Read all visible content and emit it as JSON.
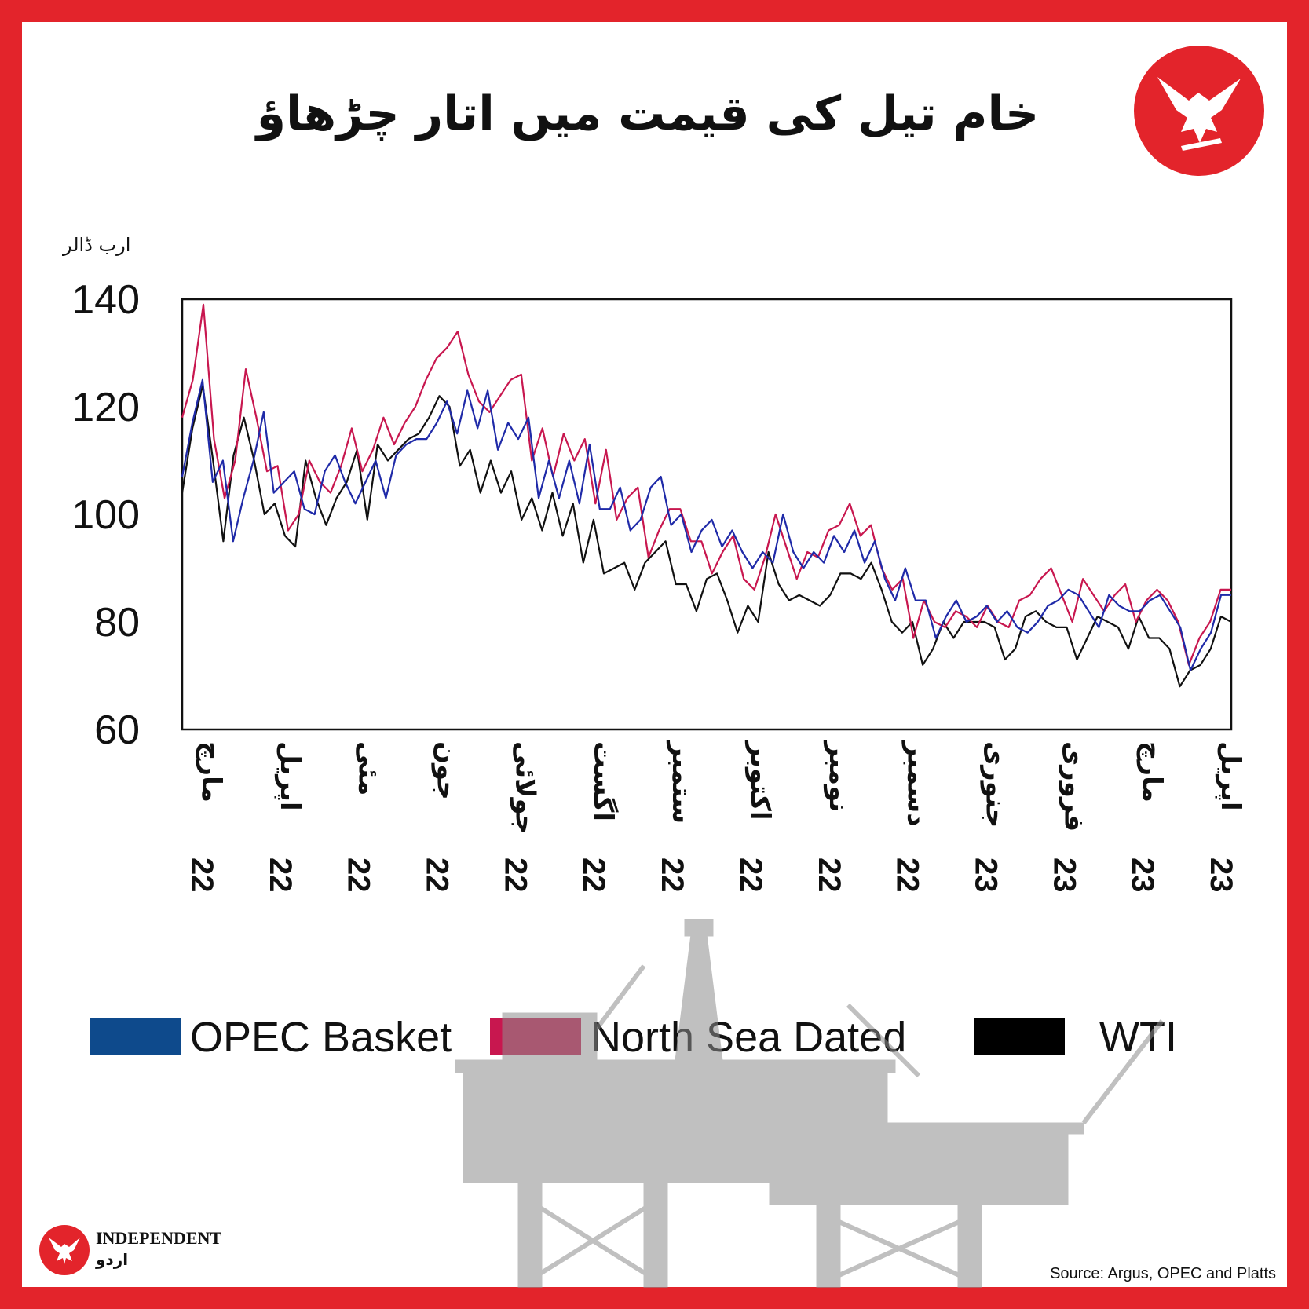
{
  "header": {
    "title": "خام تیل کی قیمت میں اتار چڑھاؤ"
  },
  "footer": {
    "brand_name": "INDEPENDENT",
    "brand_sub": "اردو",
    "source": "Source: Argus, OPEC and Platts"
  },
  "colors": {
    "frame": "#e3242b",
    "opec": "#1f2aa8",
    "north_sea": "#c8174f",
    "wti": "#111111",
    "rig": "#bdbdbd"
  },
  "icons": {
    "logo": "eagle-logo-icon",
    "rig": "oil-rig-icon"
  },
  "chart_data": {
    "type": "line",
    "title": "خام تیل کی قیمت میں اتار چڑھاؤ",
    "ylabel": "ارب ڈالر",
    "xlabel": "",
    "ylim": [
      60,
      140
    ],
    "yticks": [
      "140",
      "120",
      "100",
      "80",
      "60"
    ],
    "grid": false,
    "legend_position": "bottom",
    "x_ticks": [
      {
        "month": "مارچ",
        "year": "22"
      },
      {
        "month": "اپریل",
        "year": "22"
      },
      {
        "month": "مئی",
        "year": "22"
      },
      {
        "month": "جون",
        "year": "22"
      },
      {
        "month": "جولائی",
        "year": "22"
      },
      {
        "month": "اگست",
        "year": "22"
      },
      {
        "month": "ستمبر",
        "year": "22"
      },
      {
        "month": "اکتوبر",
        "year": "22"
      },
      {
        "month": "نومبر",
        "year": "22"
      },
      {
        "month": "دسمبر",
        "year": "22"
      },
      {
        "month": "جنوری",
        "year": "23"
      },
      {
        "month": "فروری",
        "year": "23"
      },
      {
        "month": "مارچ",
        "year": "23"
      },
      {
        "month": "اپریل",
        "year": "23"
      }
    ],
    "series": [
      {
        "name": "OPEC Basket",
        "color": "#1f2aa8",
        "values": [
          107,
          117,
          125,
          106,
          110,
          95,
          103,
          110,
          119,
          104,
          106,
          108,
          101,
          100,
          108,
          111,
          106,
          102,
          106,
          110,
          103,
          111,
          113,
          114,
          114,
          117,
          121,
          115,
          123,
          116,
          123,
          112,
          117,
          114,
          118,
          103,
          110,
          103,
          110,
          102,
          113,
          101,
          101,
          105,
          97,
          99,
          105,
          107,
          98,
          100,
          93,
          97,
          99,
          94,
          97,
          93,
          90,
          93,
          91,
          100,
          93,
          90,
          93,
          91,
          96,
          93,
          97,
          91,
          95,
          88,
          84,
          90,
          84,
          84,
          77,
          81,
          84,
          80,
          81,
          83,
          80,
          82,
          79,
          78,
          80,
          83,
          84,
          86,
          85,
          82,
          79,
          85,
          83,
          82,
          82,
          84,
          85,
          82,
          79,
          71,
          75,
          78,
          85,
          85
        ]
      },
      {
        "name": "North Sea Dated",
        "color": "#c8174f",
        "values": [
          118,
          125,
          139,
          114,
          103,
          110,
          127,
          118,
          108,
          109,
          97,
          100,
          110,
          106,
          104,
          109,
          116,
          108,
          112,
          118,
          113,
          117,
          120,
          125,
          129,
          131,
          134,
          126,
          121,
          119,
          122,
          125,
          126,
          110,
          116,
          107,
          115,
          110,
          114,
          102,
          112,
          99,
          103,
          105,
          92,
          97,
          101,
          101,
          95,
          95,
          89,
          93,
          96,
          88,
          86,
          92,
          100,
          94,
          88,
          93,
          92,
          97,
          98,
          102,
          96,
          98,
          90,
          86,
          88,
          77,
          84,
          80,
          79,
          82,
          81,
          79,
          83,
          80,
          79,
          84,
          85,
          88,
          90,
          85,
          80,
          88,
          85,
          82,
          85,
          87,
          80,
          84,
          86,
          84,
          80,
          72,
          77,
          80,
          86,
          86
        ]
      },
      {
        "name": "WTI",
        "color": "#111111",
        "values": [
          104,
          116,
          124,
          110,
          95,
          111,
          118,
          110,
          100,
          102,
          96,
          94,
          110,
          103,
          98,
          103,
          106,
          112,
          99,
          113,
          110,
          112,
          114,
          115,
          118,
          122,
          120,
          109,
          112,
          104,
          110,
          104,
          108,
          99,
          103,
          97,
          104,
          96,
          102,
          91,
          99,
          89,
          90,
          91,
          86,
          91,
          93,
          95,
          87,
          87,
          82,
          88,
          89,
          84,
          78,
          83,
          80,
          93,
          87,
          84,
          85,
          84,
          83,
          85,
          89,
          89,
          88,
          91,
          86,
          80,
          78,
          80,
          72,
          75,
          80,
          77,
          80,
          80,
          80,
          79,
          73,
          75,
          81,
          82,
          80,
          79,
          79,
          73,
          77,
          81,
          80,
          79,
          75,
          81,
          77,
          77,
          75,
          68,
          71,
          72,
          75,
          81,
          80
        ]
      }
    ]
  }
}
